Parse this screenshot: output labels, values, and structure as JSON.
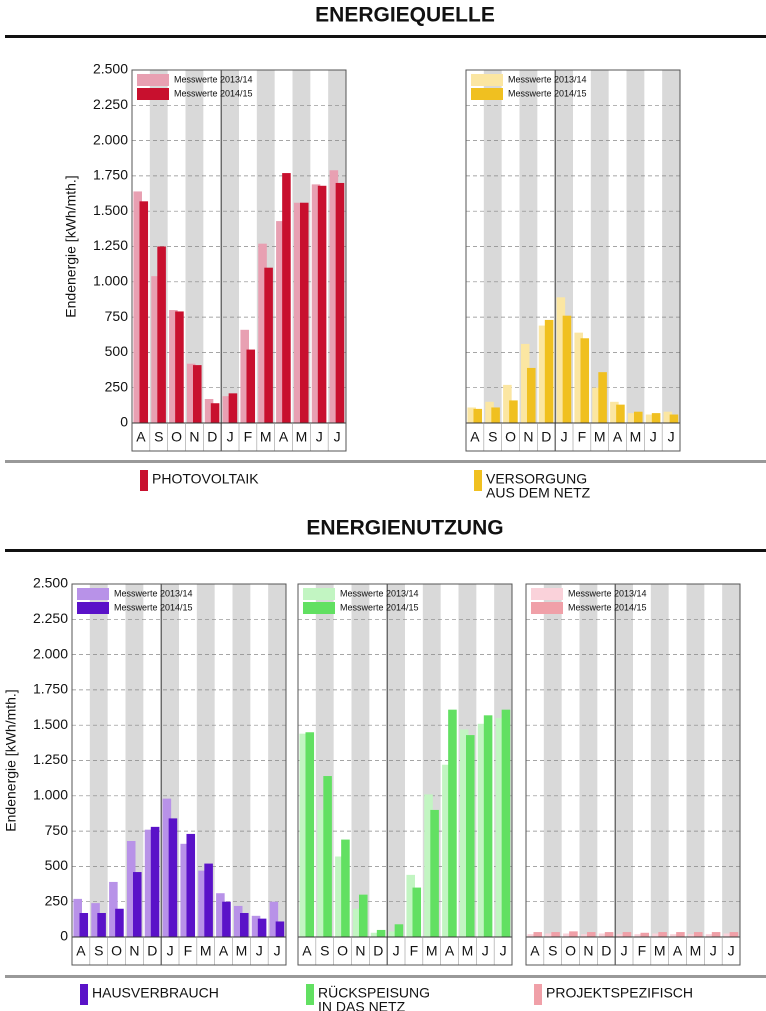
{
  "headings": [
    "ENERGIEQUELLE",
    "ENERGIENUTZUNG"
  ],
  "chart_data": [
    {
      "type": "bar",
      "ylabel": "Endenergie [kWh/mth.]",
      "caption": [
        "PHOTOVOLTAIK"
      ],
      "categories": [
        "A",
        "S",
        "O",
        "N",
        "D",
        "J",
        "F",
        "M",
        "A",
        "M",
        "J",
        "J"
      ],
      "ylim": [
        0,
        2500
      ],
      "yticks": [
        0,
        250,
        500,
        750,
        {
          "value": 1000,
          "label": "1.000"
        },
        {
          "value": 1250,
          "label": "1.250"
        },
        {
          "value": 1500,
          "label": "1.500"
        },
        {
          "value": 1750,
          "label": "1.750"
        },
        {
          "value": 2000,
          "label": "2.000"
        },
        {
          "value": 2250,
          "label": "2.250"
        },
        {
          "value": 2500,
          "label": "2.500"
        }
      ],
      "grid": true,
      "series": [
        {
          "name": "Messwerte 2013/14",
          "color": "#e8a0b2",
          "values": [
            1640,
            1040,
            800,
            420,
            170,
            190,
            660,
            1270,
            1430,
            1560,
            1690,
            1790
          ]
        },
        {
          "name": "Messwerte 2014/15",
          "color": "#c8102e",
          "values": [
            1570,
            1250,
            790,
            410,
            140,
            210,
            520,
            1100,
            1770,
            1560,
            1680,
            1700
          ]
        }
      ]
    },
    {
      "type": "bar",
      "caption": [
        "VERSORGUNG",
        "AUS DEM NETZ"
      ],
      "categories": [
        "A",
        "S",
        "O",
        "N",
        "D",
        "J",
        "F",
        "M",
        "A",
        "M",
        "J",
        "J"
      ],
      "ylim": [
        0,
        2500
      ],
      "grid": true,
      "series": [
        {
          "name": "Messwerte 2013/14",
          "color": "#fbe6a2",
          "values": [
            110,
            150,
            270,
            560,
            690,
            890,
            640,
            250,
            150,
            70,
            60,
            80
          ]
        },
        {
          "name": "Messwerte 2014/15",
          "color": "#f0c020",
          "values": [
            100,
            110,
            160,
            390,
            730,
            760,
            600,
            360,
            130,
            80,
            70,
            60
          ]
        }
      ]
    },
    {
      "type": "bar",
      "ylabel": "Endenergie [kWh/mth.]",
      "caption": [
        "HAUSVERBRAUCH"
      ],
      "categories": [
        "A",
        "S",
        "O",
        "N",
        "D",
        "J",
        "F",
        "M",
        "A",
        "M",
        "J",
        "J"
      ],
      "ylim": [
        0,
        2500
      ],
      "yticks": [
        0,
        250,
        500,
        750,
        {
          "value": 1000,
          "label": "1.000"
        },
        {
          "value": 1250,
          "label": "1.250"
        },
        {
          "value": 1500,
          "label": "1.500"
        },
        {
          "value": 1750,
          "label": "1.750"
        },
        {
          "value": 2000,
          "label": "2.000"
        },
        {
          "value": 2250,
          "label": "2.250"
        },
        {
          "value": 2500,
          "label": "2.500"
        }
      ],
      "grid": true,
      "series": [
        {
          "name": "Messwerte 2013/14",
          "color": "#b892e8",
          "values": [
            270,
            240,
            390,
            680,
            760,
            980,
            660,
            470,
            310,
            220,
            150,
            250
          ]
        },
        {
          "name": "Messwerte 2014/15",
          "color": "#5a12c8",
          "values": [
            170,
            170,
            200,
            460,
            780,
            840,
            730,
            520,
            250,
            170,
            130,
            110
          ]
        }
      ]
    },
    {
      "type": "bar",
      "caption": [
        "RÜCKSPEISUNG",
        "IN DAS NETZ"
      ],
      "categories": [
        "A",
        "S",
        "O",
        "N",
        "D",
        "J",
        "F",
        "M",
        "A",
        "M",
        "J",
        "J"
      ],
      "ylim": [
        0,
        2500
      ],
      "grid": true,
      "series": [
        {
          "name": "Messwerte 2013/14",
          "color": "#c2f5c2",
          "values": [
            1440,
            900,
            570,
            200,
            30,
            40,
            440,
            1010,
            1220,
            1470,
            1510,
            1550
          ]
        },
        {
          "name": "Messwerte 2014/15",
          "color": "#62e062",
          "values": [
            1450,
            1140,
            690,
            300,
            50,
            90,
            350,
            900,
            1610,
            1430,
            1570,
            1610
          ]
        }
      ]
    },
    {
      "type": "bar",
      "caption": [
        "PROJEKTSPEZIFISCH"
      ],
      "categories": [
        "A",
        "S",
        "O",
        "N",
        "D",
        "J",
        "F",
        "M",
        "A",
        "M",
        "J",
        "J"
      ],
      "ylim": [
        0,
        2500
      ],
      "grid": true,
      "series": [
        {
          "name": "Messwerte 2013/14",
          "color": "#fad2da",
          "values": [
            20,
            25,
            25,
            20,
            25,
            20,
            20,
            25,
            20,
            20,
            20,
            25
          ]
        },
        {
          "name": "Messwerte 2014/15",
          "color": "#f0a0a8",
          "values": [
            35,
            35,
            40,
            35,
            35,
            35,
            30,
            35,
            35,
            35,
            35,
            35
          ]
        }
      ]
    }
  ]
}
